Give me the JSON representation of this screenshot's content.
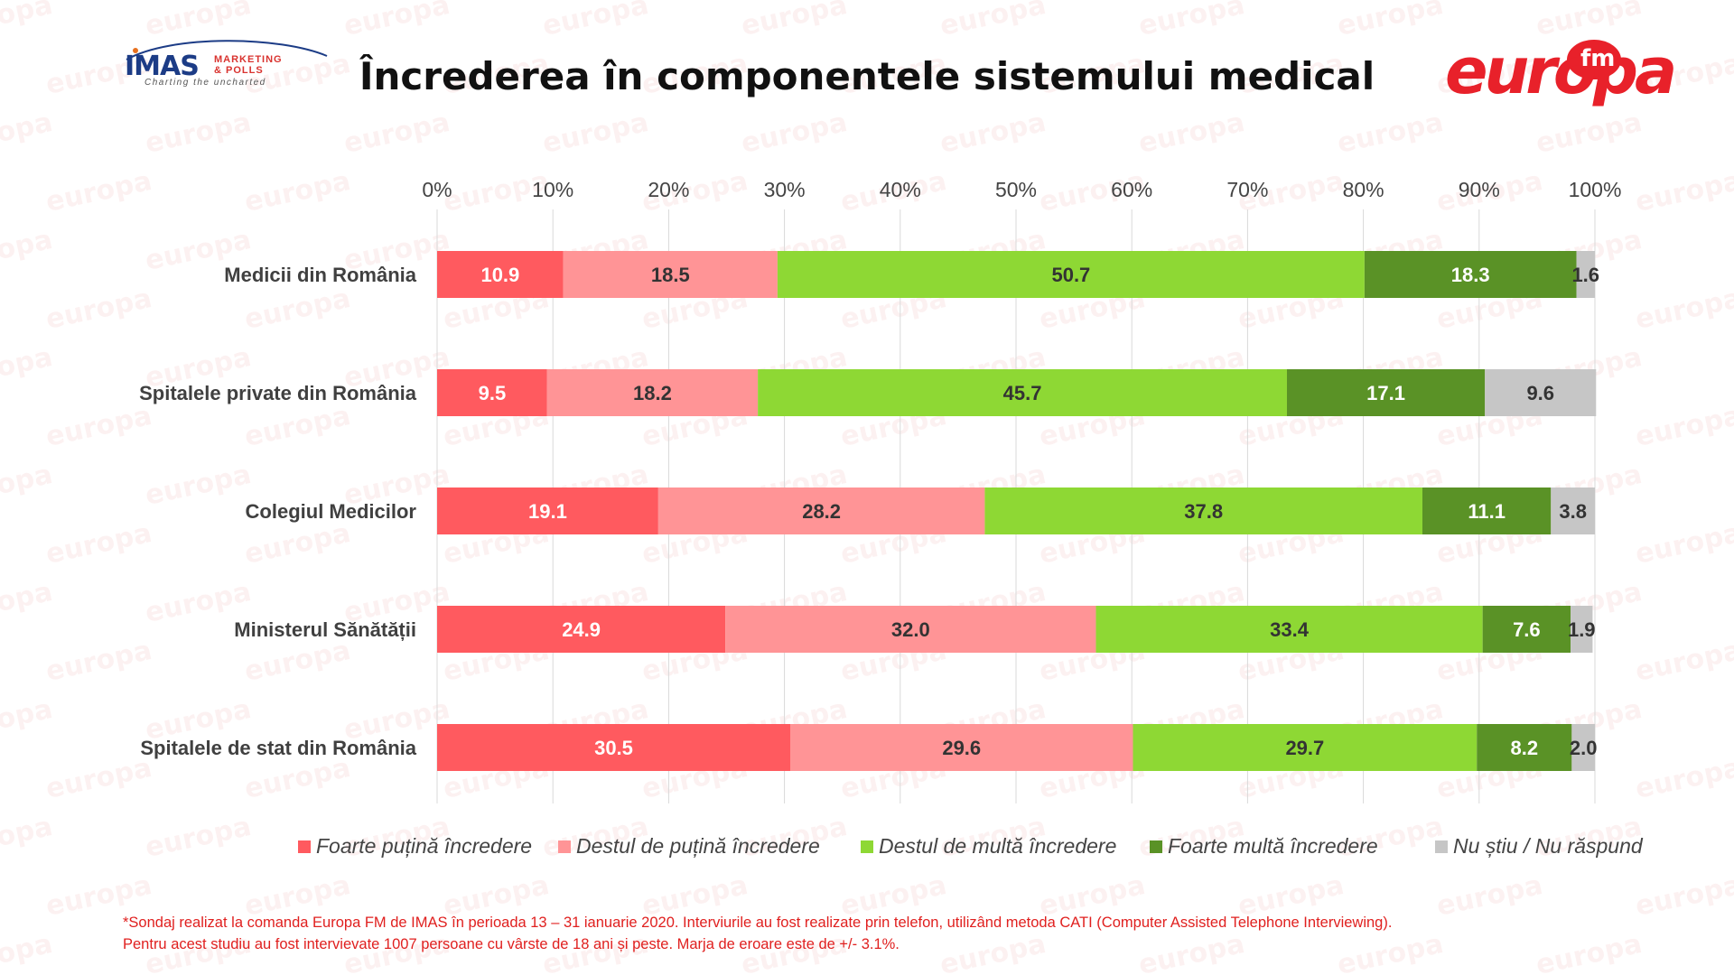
{
  "title": "Încrederea în componentele sistemului medical",
  "logos": {
    "left": {
      "main": "IMAS",
      "line1": "MARKETING",
      "line2": "& POLLS",
      "tagline": "Charting the uncharted"
    },
    "right": {
      "word": "europa",
      "badge": "fm"
    }
  },
  "watermark_text": "europa",
  "colors": {
    "foarte_putina": "#ff5a5f",
    "destul_putina": "#ff9496",
    "destul_multa": "#8ed834",
    "foarte_multa": "#5a9226",
    "nu_stiu": "#c6c6c6",
    "title": "#111111",
    "footnote": "#e0201f"
  },
  "chart_data": {
    "type": "bar",
    "orientation": "horizontal",
    "stacked": true,
    "categories": [
      "Medicii din România",
      "Spitalele private din România",
      "Colegiul Medicilor",
      "Ministerul Sănătății",
      "Spitalele de stat din România"
    ],
    "series": [
      {
        "name": "Foarte puțină încredere",
        "values": [
          10.9,
          9.5,
          19.1,
          24.9,
          30.5
        ],
        "labels": [
          "10.9",
          "9.5",
          "19.1",
          "24.9",
          "30.5"
        ],
        "color": "#ff5a5f",
        "label_color": "#ffffff"
      },
      {
        "name": "Destul de puțină încredere",
        "values": [
          18.5,
          18.2,
          28.2,
          32.0,
          29.6
        ],
        "labels": [
          "18.5",
          "18.2",
          "28.2",
          "32.0",
          "29.6"
        ],
        "color": "#ff9496",
        "label_color": "#333333"
      },
      {
        "name": "Destul de multă încredere",
        "values": [
          50.7,
          45.7,
          37.8,
          33.4,
          29.7
        ],
        "labels": [
          "50.7",
          "45.7",
          "37.8",
          "33.4",
          "29.7"
        ],
        "color": "#8ed834",
        "label_color": "#333333"
      },
      {
        "name": "Foarte multă încredere",
        "values": [
          18.3,
          17.1,
          11.1,
          7.6,
          8.2
        ],
        "labels": [
          "18.3",
          "17.1",
          "11.1",
          "7.6",
          "8.2"
        ],
        "color": "#5a9226",
        "label_color": "#ffffff"
      },
      {
        "name": "Nu știu / Nu răspund",
        "values": [
          1.6,
          9.6,
          3.8,
          1.9,
          2.0
        ],
        "labels": [
          "1.6",
          "9.6",
          "3.8",
          "1.9",
          "2.0"
        ],
        "color": "#c6c6c6",
        "label_color": "#333333"
      }
    ],
    "xlim": [
      0,
      100
    ],
    "xticks": [
      "0%",
      "10%",
      "20%",
      "30%",
      "40%",
      "50%",
      "60%",
      "70%",
      "80%",
      "90%",
      "100%"
    ],
    "axis_position": "top",
    "grid": true,
    "legend_position": "bottom"
  },
  "footnote": [
    "*Sondaj realizat la comanda Europa FM de IMAS în perioada 13 – 31 ianuarie 2020. Interviurile au fost realizate prin telefon, utilizând metoda CATI (Computer Assisted Telephone Interviewing).",
    "Pentru acest studiu au fost intervievate 1007 persoane cu vârste de 18 ani și peste. Marja de eroare este de +/- 3.1%."
  ]
}
